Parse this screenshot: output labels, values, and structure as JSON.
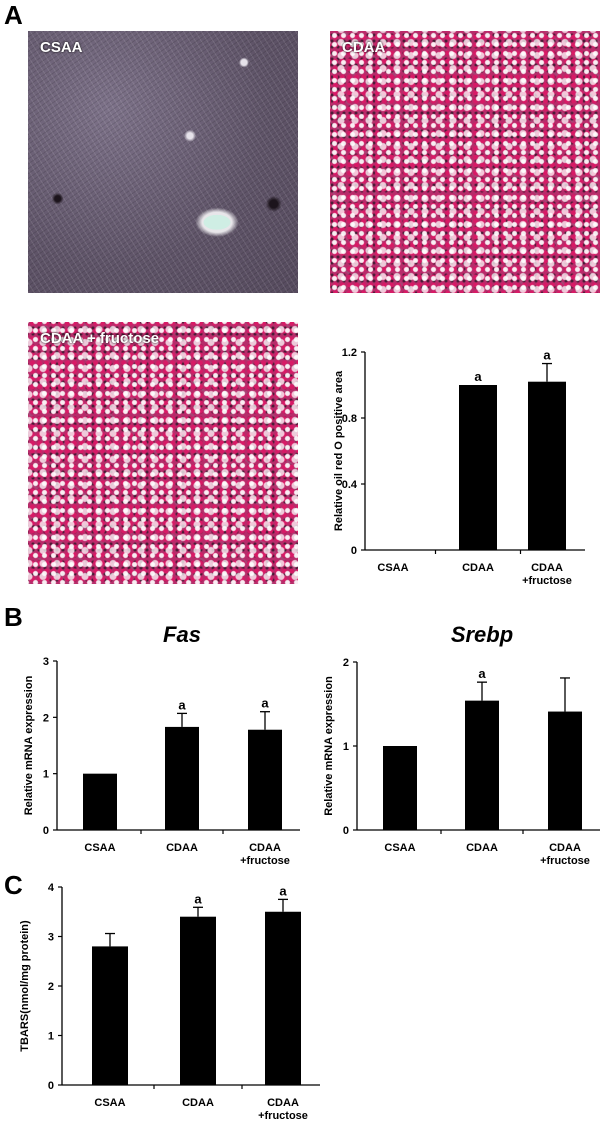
{
  "panels": {
    "a_letter": "A",
    "b_letter": "B",
    "c_letter": "C"
  },
  "micrographs": [
    {
      "label": "CSAA"
    },
    {
      "label": "CDAA"
    },
    {
      "label": "CDAA + fructose"
    }
  ],
  "colors": {
    "bar": "#000000",
    "axis": "#000000"
  },
  "chart_data": [
    {
      "id": "oil",
      "type": "bar",
      "title": "",
      "ylabel": "Relative oil red O positive area",
      "categories": [
        [
          "CSAA"
        ],
        [
          "CDAA"
        ],
        [
          "CDAA",
          "+fructose"
        ]
      ],
      "values": [
        0,
        1.0,
        1.02
      ],
      "errors": [
        0,
        0,
        0.11
      ],
      "annotations": [
        "",
        "a",
        "a"
      ],
      "ylim": [
        0,
        1.2
      ],
      "yticks": [
        "0",
        "0.4",
        "0.8",
        "1.2"
      ],
      "tickvals": [
        0,
        0.4,
        0.8,
        1.2
      ],
      "grid": false
    },
    {
      "id": "fas",
      "type": "bar",
      "title": "Fas",
      "ylabel": "Relative mRNA expression",
      "categories": [
        [
          "CSAA"
        ],
        [
          "CDAA"
        ],
        [
          "CDAA",
          "+fructose"
        ]
      ],
      "values": [
        1.0,
        1.83,
        1.78
      ],
      "errors": [
        0,
        0.24,
        0.32
      ],
      "annotations": [
        "",
        "a",
        "a"
      ],
      "ylim": [
        0,
        3
      ],
      "yticks": [
        "0",
        "1",
        "2",
        "3"
      ],
      "tickvals": [
        0,
        1,
        2,
        3
      ],
      "grid": false
    },
    {
      "id": "srebp",
      "type": "bar",
      "title": "Srebp",
      "ylabel": "Relative mRNA expression",
      "categories": [
        [
          "CSAA"
        ],
        [
          "CDAA"
        ],
        [
          "CDAA",
          "+fructose"
        ]
      ],
      "values": [
        1.0,
        1.54,
        1.41
      ],
      "errors": [
        0,
        0.22,
        0.4
      ],
      "annotations": [
        "",
        "a",
        ""
      ],
      "ylim": [
        0,
        2
      ],
      "yticks": [
        "0",
        "1",
        "2"
      ],
      "tickvals": [
        0,
        1,
        2
      ],
      "grid": false
    },
    {
      "id": "tbars",
      "type": "bar",
      "title": "",
      "ylabel": "TBARS(nmol/mg protein)",
      "categories": [
        [
          "CSAA"
        ],
        [
          "CDAA"
        ],
        [
          "CDAA",
          "+fructose"
        ]
      ],
      "values": [
        2.8,
        3.4,
        3.5
      ],
      "errors": [
        0.26,
        0.19,
        0.25
      ],
      "annotations": [
        "",
        "a",
        "a"
      ],
      "ylim": [
        0,
        4
      ],
      "yticks": [
        "0",
        "1",
        "2",
        "3",
        "4"
      ],
      "tickvals": [
        0,
        1,
        2,
        3,
        4
      ],
      "grid": false
    }
  ]
}
